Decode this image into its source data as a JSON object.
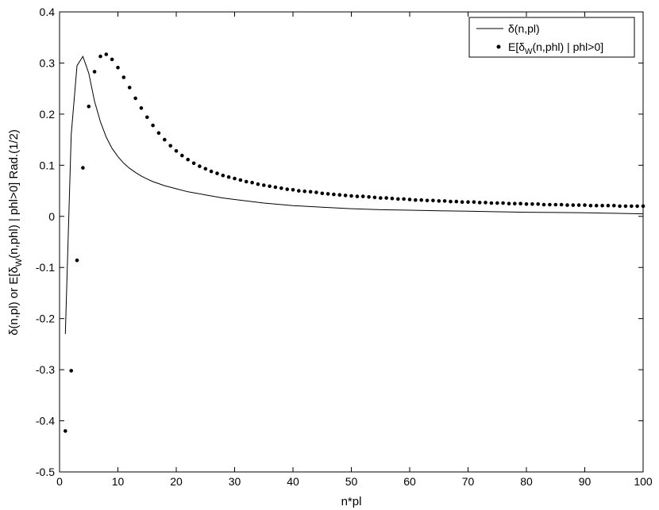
{
  "chart_data": {
    "type": "line",
    "xlabel": "n*pl",
    "ylabel": "δ(n,pl) or E[δ_W(n,phl) | phl>0]   Rad.(1/2)",
    "ylabel_parts": {
      "pre": "δ(n,pl) or E[δ",
      "sub": "W",
      "post": "(n,phl) | phl>0]   Rad.(1/2)"
    },
    "xlim": [
      0,
      100
    ],
    "ylim": [
      -0.5,
      0.4
    ],
    "xticks": [
      "0",
      "10",
      "20",
      "30",
      "40",
      "50",
      "60",
      "70",
      "80",
      "90",
      "100"
    ],
    "yticks": [
      "-0.5",
      "-0.4",
      "-0.3",
      "-0.2",
      "-0.1",
      "0",
      "0.1",
      "0.2",
      "0.3",
      "0.4"
    ],
    "grid": false,
    "legend_placement": "top-right",
    "legend": [
      {
        "label": "δ(n,pl)",
        "style": "line"
      },
      {
        "label_pre": "E[δ",
        "label_sub": "W",
        "label_post": "(n,phl) | phl>0]",
        "style": "dots"
      }
    ],
    "series": [
      {
        "name": "δ(n,pl)",
        "style": "line",
        "x": [
          1,
          2,
          3,
          4,
          5,
          6,
          7,
          8,
          9,
          10,
          11,
          12,
          13,
          14,
          15,
          16,
          18,
          20,
          22,
          25,
          28,
          30,
          35,
          40,
          45,
          50,
          55,
          60,
          65,
          70,
          75,
          80,
          85,
          90,
          95,
          100
        ],
        "y": [
          -0.23,
          0.16,
          0.295,
          0.313,
          0.28,
          0.225,
          0.185,
          0.155,
          0.133,
          0.117,
          0.104,
          0.094,
          0.086,
          0.079,
          0.073,
          0.068,
          0.06,
          0.054,
          0.048,
          0.042,
          0.036,
          0.033,
          0.026,
          0.021,
          0.018,
          0.015,
          0.013,
          0.012,
          0.011,
          0.01,
          0.009,
          0.008,
          0.0075,
          0.007,
          0.006,
          0.005
        ]
      },
      {
        "name": "E[δW(n,phl) | phl>0]",
        "style": "dots",
        "x": [
          1,
          2,
          3,
          4,
          5,
          6,
          7,
          8,
          9,
          10,
          11,
          12,
          13,
          14,
          15,
          16,
          17,
          18,
          19,
          20,
          21,
          22,
          23,
          24,
          25,
          26,
          27,
          28,
          29,
          30,
          31,
          32,
          33,
          34,
          35,
          36,
          37,
          38,
          39,
          40,
          41,
          42,
          43,
          44,
          45,
          46,
          47,
          48,
          49,
          50,
          51,
          52,
          53,
          54,
          55,
          56,
          57,
          58,
          59,
          60,
          61,
          62,
          63,
          64,
          65,
          66,
          67,
          68,
          69,
          70,
          71,
          72,
          73,
          74,
          75,
          76,
          77,
          78,
          79,
          80,
          81,
          82,
          83,
          84,
          85,
          86,
          87,
          88,
          89,
          90,
          91,
          92,
          93,
          94,
          95,
          96,
          97,
          98,
          99,
          100
        ],
        "y": [
          -0.42,
          -0.302,
          -0.086,
          0.095,
          0.215,
          0.283,
          0.313,
          0.317,
          0.307,
          0.291,
          0.272,
          0.252,
          0.231,
          0.212,
          0.194,
          0.178,
          0.163,
          0.15,
          0.138,
          0.128,
          0.119,
          0.111,
          0.104,
          0.098,
          0.093,
          0.088,
          0.084,
          0.08,
          0.077,
          0.074,
          0.071,
          0.068,
          0.066,
          0.063,
          0.061,
          0.059,
          0.057,
          0.055,
          0.053,
          0.052,
          0.05,
          0.049,
          0.048,
          0.047,
          0.045,
          0.044,
          0.043,
          0.042,
          0.041,
          0.04,
          0.039,
          0.039,
          0.038,
          0.037,
          0.036,
          0.036,
          0.035,
          0.034,
          0.034,
          0.033,
          0.032,
          0.032,
          0.031,
          0.031,
          0.03,
          0.03,
          0.029,
          0.029,
          0.028,
          0.028,
          0.028,
          0.027,
          0.027,
          0.026,
          0.026,
          0.026,
          0.025,
          0.025,
          0.025,
          0.024,
          0.024,
          0.024,
          0.023,
          0.023,
          0.023,
          0.023,
          0.022,
          0.022,
          0.022,
          0.022,
          0.021,
          0.021,
          0.021,
          0.021,
          0.021,
          0.02,
          0.02,
          0.02,
          0.02,
          0.02
        ]
      }
    ]
  }
}
